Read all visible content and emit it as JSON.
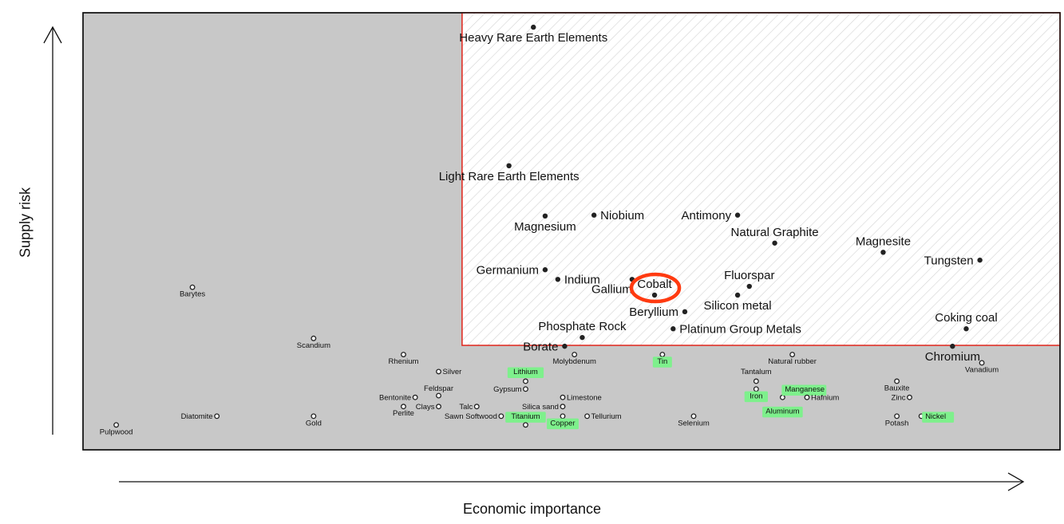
{
  "chart_data": {
    "type": "scatter",
    "title": "",
    "xlabel": "Economic importance",
    "ylabel": "Supply risk",
    "xlim": [
      0,
      100
    ],
    "ylim": [
      0,
      100
    ],
    "grid": false,
    "critical_region": {
      "x_min": 38.8,
      "y_min": 23.9
    },
    "critical_region_style": "red border with diagonal hatching",
    "highlighted_point": "Cobalt",
    "colors": {
      "non_critical_background": "#c8c8c8",
      "critical_border": "#e0251b",
      "hatch": "#dbdbdb",
      "cobalt_ring": "#ff3a10",
      "highlight_box": "#7ef08c",
      "marker": "#222222"
    },
    "points": [
      {
        "name": "Heavy Rare Earth Elements",
        "x": 46.1,
        "y": 96.7,
        "marker": "filled",
        "label_size": "large",
        "label_pos": "below",
        "highlight": false
      },
      {
        "name": "Light Rare Earth Elements",
        "x": 43.6,
        "y": 65.0,
        "marker": "filled",
        "label_size": "large",
        "label_pos": "below",
        "highlight": false
      },
      {
        "name": "Magnesium",
        "x": 47.3,
        "y": 53.5,
        "marker": "filled",
        "label_size": "large",
        "label_pos": "below",
        "highlight": false
      },
      {
        "name": "Niobium",
        "x": 52.3,
        "y": 53.7,
        "marker": "filled",
        "label_size": "large",
        "label_pos": "right",
        "highlight": false
      },
      {
        "name": "Antimony",
        "x": 67.0,
        "y": 53.7,
        "marker": "filled",
        "label_size": "large",
        "label_pos": "left",
        "highlight": false
      },
      {
        "name": "Natural Graphite",
        "x": 70.8,
        "y": 47.3,
        "marker": "filled",
        "label_size": "large",
        "label_pos": "above",
        "highlight": false
      },
      {
        "name": "Magnesite",
        "x": 81.9,
        "y": 45.2,
        "marker": "filled",
        "label_size": "large",
        "label_pos": "above",
        "highlight": false
      },
      {
        "name": "Tungsten",
        "x": 91.8,
        "y": 43.4,
        "marker": "filled",
        "label_size": "large",
        "label_pos": "left",
        "highlight": false
      },
      {
        "name": "Germanium",
        "x": 47.3,
        "y": 41.2,
        "marker": "filled",
        "label_size": "large",
        "label_pos": "left",
        "highlight": false
      },
      {
        "name": "Indium",
        "x": 48.6,
        "y": 39.0,
        "marker": "filled",
        "label_size": "large",
        "label_pos": "right",
        "highlight": false
      },
      {
        "name": "Gallium",
        "x": 56.2,
        "y": 39.0,
        "marker": "filled",
        "label_size": "large",
        "label_pos": "below-left",
        "highlight": false
      },
      {
        "name": "Cobalt",
        "x": 58.5,
        "y": 35.4,
        "marker": "filled",
        "label_size": "large",
        "label_pos": "above",
        "highlight": false
      },
      {
        "name": "Fluorspar",
        "x": 68.2,
        "y": 37.4,
        "marker": "filled",
        "label_size": "large",
        "label_pos": "above",
        "highlight": false
      },
      {
        "name": "Silicon metal",
        "x": 67.0,
        "y": 35.4,
        "marker": "filled",
        "label_size": "large",
        "label_pos": "below",
        "highlight": false
      },
      {
        "name": "Beryllium",
        "x": 61.6,
        "y": 31.6,
        "marker": "filled",
        "label_size": "large",
        "label_pos": "left",
        "highlight": false
      },
      {
        "name": "Platinum Group Metals",
        "x": 60.4,
        "y": 27.7,
        "marker": "filled",
        "label_size": "large",
        "label_pos": "right",
        "highlight": false
      },
      {
        "name": "Phosphate Rock",
        "x": 51.1,
        "y": 25.7,
        "marker": "filled",
        "label_size": "large",
        "label_pos": "above",
        "highlight": false
      },
      {
        "name": "Borate",
        "x": 49.3,
        "y": 23.7,
        "marker": "filled",
        "label_size": "large",
        "label_pos": "left",
        "highlight": false
      },
      {
        "name": "Coking coal",
        "x": 90.4,
        "y": 27.7,
        "marker": "filled",
        "label_size": "large",
        "label_pos": "above",
        "highlight": false
      },
      {
        "name": "Chromium",
        "x": 89.0,
        "y": 23.7,
        "marker": "filled",
        "label_size": "large",
        "label_pos": "below",
        "highlight": false
      },
      {
        "name": "Barytes",
        "x": 11.2,
        "y": 37.2,
        "marker": "open",
        "label_size": "small",
        "label_pos": "below",
        "highlight": false
      },
      {
        "name": "Scandium",
        "x": 23.6,
        "y": 25.5,
        "marker": "open",
        "label_size": "small",
        "label_pos": "below",
        "highlight": false
      },
      {
        "name": "Rhenium",
        "x": 32.8,
        "y": 21.8,
        "marker": "open",
        "label_size": "small",
        "label_pos": "below",
        "highlight": false
      },
      {
        "name": "Molybdenum",
        "x": 50.3,
        "y": 21.8,
        "marker": "open",
        "label_size": "small",
        "label_pos": "below",
        "highlight": false
      },
      {
        "name": "Tin",
        "x": 59.3,
        "y": 21.8,
        "marker": "open",
        "label_size": "small",
        "label_pos": "below",
        "highlight": true
      },
      {
        "name": "Natural rubber",
        "x": 72.6,
        "y": 21.8,
        "marker": "open",
        "label_size": "small",
        "label_pos": "below",
        "highlight": false
      },
      {
        "name": "Vanadium",
        "x": 92.0,
        "y": 19.9,
        "marker": "open",
        "label_size": "small",
        "label_pos": "below",
        "highlight": false
      },
      {
        "name": "Silver",
        "x": 36.4,
        "y": 17.9,
        "marker": "open",
        "label_size": "small",
        "label_pos": "right",
        "highlight": false
      },
      {
        "name": "Lithium",
        "x": 45.3,
        "y": 17.9,
        "marker": "none",
        "label_size": "small",
        "label_pos": "center",
        "highlight": true
      },
      {
        "name": "Tantalum",
        "x": 68.9,
        "y": 17.9,
        "marker": "none",
        "label_size": "small",
        "label_pos": "center",
        "highlight": false
      },
      {
        "name": "",
        "x": 45.3,
        "y": 15.7,
        "marker": "open",
        "label_size": "small",
        "label_pos": "none",
        "highlight": false
      },
      {
        "name": "",
        "x": 68.9,
        "y": 15.7,
        "marker": "open",
        "label_size": "small",
        "label_pos": "none",
        "highlight": false
      },
      {
        "name": "Bauxite",
        "x": 83.3,
        "y": 15.7,
        "marker": "open",
        "label_size": "small",
        "label_pos": "below",
        "highlight": false
      },
      {
        "name": "Feldspar",
        "x": 36.4,
        "y": 12.4,
        "marker": "open",
        "label_size": "small",
        "label_pos": "above",
        "highlight": false
      },
      {
        "name": "Gypsum",
        "x": 45.3,
        "y": 13.9,
        "marker": "open",
        "label_size": "small",
        "label_pos": "left",
        "highlight": false
      },
      {
        "name": "Iron",
        "x": 68.9,
        "y": 13.9,
        "marker": "open",
        "label_size": "small",
        "label_pos": "below",
        "highlight": true
      },
      {
        "name": "Manganese",
        "x": 71.6,
        "y": 12.0,
        "marker": "open",
        "label_size": "small",
        "label_pos": "above-right",
        "highlight": true
      },
      {
        "name": "Bentonite",
        "x": 34.0,
        "y": 12.0,
        "marker": "open",
        "label_size": "small",
        "label_pos": "left",
        "highlight": false
      },
      {
        "name": "Limestone",
        "x": 49.1,
        "y": 12.0,
        "marker": "open",
        "label_size": "small",
        "label_pos": "right",
        "highlight": false
      },
      {
        "name": "Hafnium",
        "x": 74.1,
        "y": 12.0,
        "marker": "open",
        "label_size": "small",
        "label_pos": "right",
        "highlight": false
      },
      {
        "name": "Zinc",
        "x": 84.6,
        "y": 12.0,
        "marker": "open",
        "label_size": "small",
        "label_pos": "left",
        "highlight": false
      },
      {
        "name": "Perlite",
        "x": 32.8,
        "y": 9.9,
        "marker": "open",
        "label_size": "small",
        "label_pos": "below",
        "highlight": false
      },
      {
        "name": "Clays",
        "x": 36.4,
        "y": 9.9,
        "marker": "open",
        "label_size": "small",
        "label_pos": "left",
        "highlight": false
      },
      {
        "name": "Talc",
        "x": 40.3,
        "y": 9.9,
        "marker": "open",
        "label_size": "small",
        "label_pos": "left",
        "highlight": false
      },
      {
        "name": "Silica sand",
        "x": 49.1,
        "y": 9.9,
        "marker": "open",
        "label_size": "small",
        "label_pos": "left",
        "highlight": false
      },
      {
        "name": "Aluminum",
        "x": 71.6,
        "y": 8.9,
        "marker": "none",
        "label_size": "small",
        "label_pos": "center",
        "highlight": true
      },
      {
        "name": "Diatomite",
        "x": 13.7,
        "y": 7.7,
        "marker": "open",
        "label_size": "small",
        "label_pos": "left",
        "highlight": false
      },
      {
        "name": "Gold",
        "x": 23.6,
        "y": 7.7,
        "marker": "open",
        "label_size": "small",
        "label_pos": "below",
        "highlight": false
      },
      {
        "name": "Sawn Softwood",
        "x": 42.8,
        "y": 7.7,
        "marker": "open",
        "label_size": "small",
        "label_pos": "left",
        "highlight": false
      },
      {
        "name": "Titanium",
        "x": 45.3,
        "y": 7.7,
        "marker": "none",
        "label_size": "small",
        "label_pos": "center",
        "highlight": true
      },
      {
        "name": "Copper",
        "x": 49.1,
        "y": 7.7,
        "marker": "open",
        "label_size": "small",
        "label_pos": "below",
        "highlight": true
      },
      {
        "name": "Tellurium",
        "x": 51.6,
        "y": 7.7,
        "marker": "open",
        "label_size": "small",
        "label_pos": "right",
        "highlight": false
      },
      {
        "name": "Selenium",
        "x": 62.5,
        "y": 7.7,
        "marker": "open",
        "label_size": "small",
        "label_pos": "below",
        "highlight": false
      },
      {
        "name": "Potash",
        "x": 83.3,
        "y": 7.7,
        "marker": "open",
        "label_size": "small",
        "label_pos": "below",
        "highlight": false
      },
      {
        "name": "Nickel",
        "x": 85.8,
        "y": 7.7,
        "marker": "open",
        "label_size": "small",
        "label_pos": "right",
        "highlight": true
      },
      {
        "name": "",
        "x": 45.3,
        "y": 5.7,
        "marker": "open",
        "label_size": "small",
        "label_pos": "none",
        "highlight": false
      },
      {
        "name": "Pulpwood",
        "x": 3.4,
        "y": 5.7,
        "marker": "open",
        "label_size": "small",
        "label_pos": "below",
        "highlight": false
      }
    ]
  }
}
